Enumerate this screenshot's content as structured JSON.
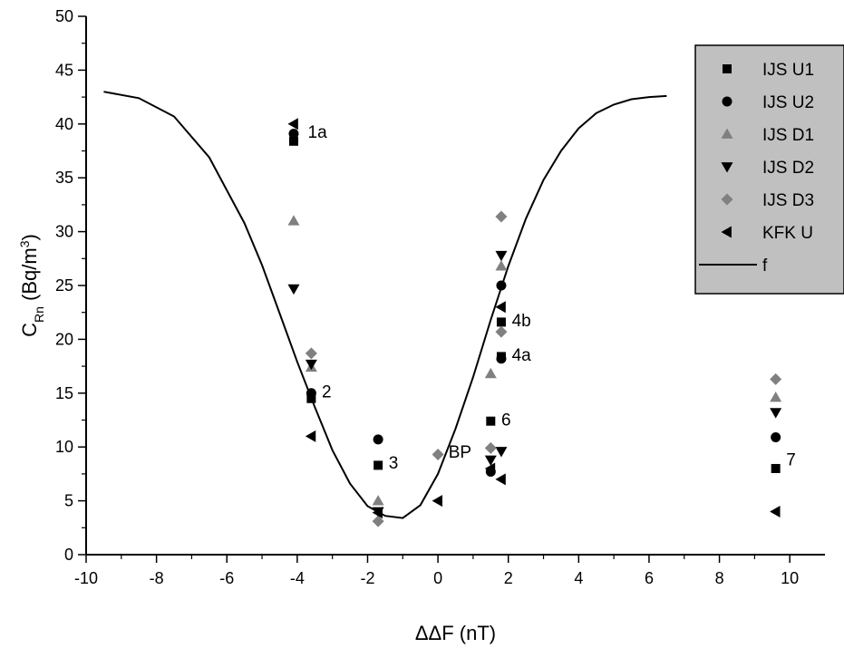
{
  "chart_data": {
    "type": "scatter",
    "xlabel": "ΔΔF (nT)",
    "ylabel": {
      "main": "C",
      "sub": "Rn",
      "unit_pre": " (Bq/m",
      "unit_sup": "3",
      "unit_post": ")"
    },
    "xlim": [
      -10,
      11
    ],
    "ylim": [
      0,
      50
    ],
    "xticks": [
      -10,
      -8,
      -6,
      -4,
      -2,
      0,
      2,
      4,
      6,
      8,
      10
    ],
    "yticks": [
      0,
      5,
      10,
      15,
      20,
      25,
      30,
      35,
      40,
      45,
      50
    ],
    "legend_position": "top-right",
    "series": [
      {
        "name": "IJS U1",
        "marker": "square",
        "color": "#000000",
        "points": [
          [
            -4.1,
            38.4
          ],
          [
            -3.6,
            14.5
          ],
          [
            -1.7,
            8.3
          ],
          [
            1.5,
            12.4
          ],
          [
            1.8,
            18.4
          ],
          [
            1.8,
            21.6
          ],
          [
            9.6,
            8.0
          ]
        ]
      },
      {
        "name": "IJS U2",
        "marker": "circle",
        "color": "#000000",
        "points": [
          [
            -4.1,
            39.1
          ],
          [
            -3.6,
            15.0
          ],
          [
            -1.7,
            10.7
          ],
          [
            1.5,
            7.7
          ],
          [
            1.8,
            18.2
          ],
          [
            1.8,
            25.0
          ],
          [
            9.6,
            10.9
          ]
        ]
      },
      {
        "name": "IJS D1",
        "marker": "triangle-up",
        "color": "#808080",
        "points": [
          [
            -4.1,
            31.0
          ],
          [
            -3.6,
            17.4
          ],
          [
            -1.7,
            5.0
          ],
          [
            1.5,
            16.8
          ],
          [
            1.8,
            26.8
          ],
          [
            9.6,
            14.6
          ]
        ]
      },
      {
        "name": "IJS D2",
        "marker": "triangle-down",
        "color": "#000000",
        "points": [
          [
            -4.1,
            24.7
          ],
          [
            -3.6,
            17.7
          ],
          [
            -1.7,
            4.0
          ],
          [
            1.5,
            8.8
          ],
          [
            1.8,
            9.6
          ],
          [
            1.8,
            27.8
          ],
          [
            9.6,
            13.2
          ]
        ]
      },
      {
        "name": "IJS D3",
        "marker": "diamond",
        "color": "#808080",
        "points": [
          [
            -3.6,
            18.7
          ],
          [
            -1.7,
            3.1
          ],
          [
            0.0,
            9.3
          ],
          [
            1.5,
            9.9
          ],
          [
            1.8,
            31.4
          ],
          [
            1.8,
            20.7
          ],
          [
            9.6,
            16.3
          ]
        ]
      },
      {
        "name": "KFK U",
        "marker": "triangle-left",
        "color": "#000000",
        "points": [
          [
            -4.1,
            40.0
          ],
          [
            -3.6,
            11.0
          ],
          [
            -1.7,
            3.9
          ],
          [
            0.0,
            5.0
          ],
          [
            1.5,
            8.0
          ],
          [
            1.8,
            7.0
          ],
          [
            1.8,
            23.0
          ],
          [
            9.6,
            4.0
          ]
        ]
      }
    ],
    "curve": {
      "name": "f",
      "color": "#000000",
      "points": [
        [
          -9.5,
          43.0
        ],
        [
          -8.5,
          42.4
        ],
        [
          -7.5,
          40.7
        ],
        [
          -6.5,
          36.9
        ],
        [
          -5.5,
          30.8
        ],
        [
          -5.0,
          26.9
        ],
        [
          -4.5,
          22.4
        ],
        [
          -4.0,
          17.9
        ],
        [
          -3.5,
          13.7
        ],
        [
          -3.0,
          9.7
        ],
        [
          -2.5,
          6.6
        ],
        [
          -2.0,
          4.5
        ],
        [
          -1.5,
          3.6
        ],
        [
          -1.0,
          3.4
        ],
        [
          -0.5,
          4.6
        ],
        [
          0.0,
          7.5
        ],
        [
          0.5,
          11.7
        ],
        [
          1.0,
          16.5
        ],
        [
          1.5,
          21.8
        ],
        [
          2.0,
          26.8
        ],
        [
          2.5,
          31.2
        ],
        [
          3.0,
          34.8
        ],
        [
          3.5,
          37.5
        ],
        [
          4.0,
          39.6
        ],
        [
          4.5,
          41.0
        ],
        [
          5.0,
          41.8
        ],
        [
          5.5,
          42.3
        ],
        [
          6.0,
          42.5
        ],
        [
          6.5,
          42.6
        ]
      ]
    },
    "annotations": [
      {
        "text": "1a",
        "x": -3.7,
        "y": 39.3
      },
      {
        "text": "2",
        "x": -3.3,
        "y": 15.2
      },
      {
        "text": "3",
        "x": -1.4,
        "y": 8.6
      },
      {
        "text": "BP",
        "x": 0.3,
        "y": 9.6
      },
      {
        "text": "6",
        "x": 1.8,
        "y": 12.6
      },
      {
        "text": "4a",
        "x": 2.1,
        "y": 18.6
      },
      {
        "text": "4b",
        "x": 2.1,
        "y": 21.8
      },
      {
        "text": "7",
        "x": 9.9,
        "y": 8.9
      }
    ]
  }
}
